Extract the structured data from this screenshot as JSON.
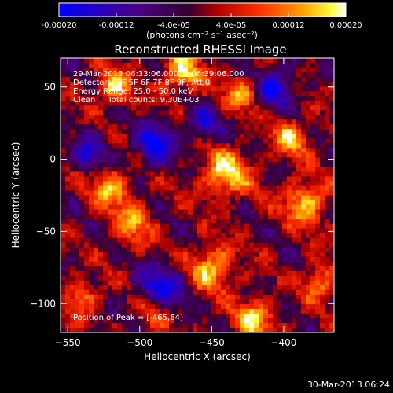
{
  "chart_data": {
    "type": "heatmap",
    "title": "Reconstructed RHESSI Image",
    "xlabel": "Heliocentric X (arcsec)",
    "ylabel": "Heliocentric Y (arcsec)",
    "xlim": [
      -555,
      -365
    ],
    "ylim": [
      -120,
      70
    ],
    "x_ticks": [
      -550,
      -500,
      -450,
      -400
    ],
    "y_ticks": [
      -100,
      -50,
      0,
      50
    ],
    "annotations": [
      "29-Mar-2013 06:33:06.000 to 06:39:06.000",
      "Detectors: 3F 5F 6F 7F 8F 9F, Att 0",
      "Energy Range: 25.0 - 50.0 keV",
      "Clean     Total counts: 9.30E+03"
    ],
    "peak_label": "Position of Peak = [-465,64]",
    "peak": [
      -465,
      64
    ],
    "colorbar": {
      "range": [
        -0.0002,
        0.0002
      ],
      "tick_labels": [
        "-0.00020",
        "-0.00012",
        "-4.0e-05",
        "4.0e-05",
        "0.00012",
        "0.00020"
      ],
      "tick_values": [
        -0.0002,
        -0.00012,
        -4e-05,
        4e-05,
        0.00012,
        0.0002
      ],
      "units": "(photons cm⁻² s⁻¹ asec⁻²)",
      "colors": [
        "#0000ff",
        "#4b0082",
        "#330033",
        "#ff0000",
        "#ff8c00",
        "#ffff00",
        "#ffffff"
      ]
    },
    "hotspots": [
      {
        "x": -518,
        "y": 50,
        "amp": 1.0,
        "r": 12
      },
      {
        "x": -470,
        "y": 60,
        "amp": 1.0,
        "r": 14
      },
      {
        "x": -430,
        "y": 45,
        "amp": 0.8,
        "r": 12
      },
      {
        "x": -395,
        "y": 15,
        "amp": 0.9,
        "r": 13
      },
      {
        "x": -440,
        "y": -10,
        "amp": 1.1,
        "r": 16
      },
      {
        "x": -385,
        "y": -30,
        "amp": 1.0,
        "r": 15
      },
      {
        "x": -520,
        "y": -20,
        "amp": 0.9,
        "r": 14
      },
      {
        "x": -505,
        "y": -45,
        "amp": 0.8,
        "r": 14
      },
      {
        "x": -450,
        "y": -75,
        "amp": 1.0,
        "r": 15
      },
      {
        "x": -420,
        "y": -110,
        "amp": 1.0,
        "r": 14
      },
      {
        "x": -540,
        "y": -95,
        "amp": 0.7,
        "r": 12
      },
      {
        "x": -375,
        "y": -85,
        "amp": 0.8,
        "r": 12
      },
      {
        "x": -490,
        "y": -105,
        "amp": 0.6,
        "r": 12
      }
    ],
    "coldspots": [
      {
        "x": -490,
        "y": 10,
        "amp": -1.1,
        "r": 14
      },
      {
        "x": -485,
        "y": -90,
        "amp": -1.1,
        "r": 15
      },
      {
        "x": -405,
        "y": 50,
        "amp": -1.0,
        "r": 13
      },
      {
        "x": -535,
        "y": 5,
        "amp": -0.8,
        "r": 12
      },
      {
        "x": -455,
        "y": 25,
        "amp": -0.8,
        "r": 12
      }
    ]
  },
  "footer": {
    "timestamp": "30-Mar-2013 06:24"
  }
}
